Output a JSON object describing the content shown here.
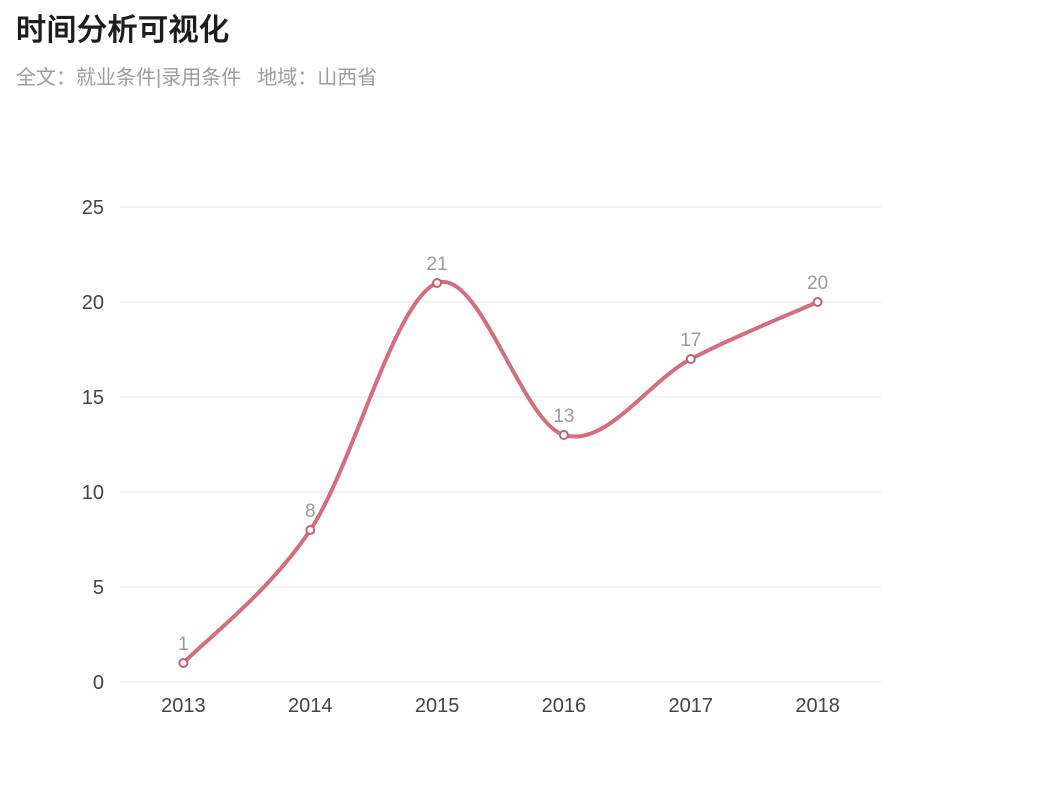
{
  "header": {
    "title": "时间分析可视化",
    "subtitle": {
      "full_text_label": "全文：",
      "full_text_value": "就业条件|录用条件",
      "region_label": "地域：",
      "region_value": "山西省"
    }
  },
  "chart_data": {
    "type": "line",
    "categories": [
      "2013",
      "2014",
      "2015",
      "2016",
      "2017",
      "2018"
    ],
    "values": [
      1,
      8,
      21,
      13,
      17,
      20
    ],
    "xlabel": "",
    "ylabel": "",
    "ylim": [
      0,
      25
    ],
    "y_ticks": [
      0,
      5,
      10,
      15,
      20,
      25
    ],
    "grid": true,
    "smooth": true,
    "legend": "none",
    "colors": {
      "line": "#d46e7b",
      "marker_stroke": "#c4606f",
      "marker_fill": "#ffffff",
      "data_label": "#9a9a9a",
      "axis_label": "#434343",
      "gridline": "#ededed"
    }
  }
}
